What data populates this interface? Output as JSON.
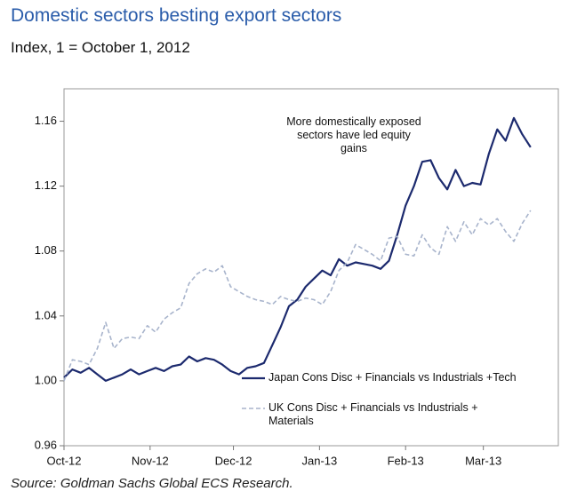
{
  "chart_data": {
    "type": "line",
    "title": "Domestic sectors besting export sectors",
    "subtitle": "Index, 1 = October 1, 2012",
    "source": "Source: Goldman Sachs Global ECS Research.",
    "annotation": "More domestically exposed sectors have led equity gains",
    "x": [
      0,
      3,
      6,
      9,
      12,
      15,
      18,
      21,
      24,
      27,
      30,
      33,
      36,
      39,
      42,
      45,
      48,
      51,
      54,
      57,
      60,
      63,
      66,
      69,
      72,
      75,
      78,
      81,
      84,
      87,
      90,
      93,
      96,
      99,
      102,
      105,
      108,
      111,
      114,
      117,
      120,
      123,
      126,
      129,
      132,
      135,
      138,
      141,
      144,
      147,
      150,
      153,
      156,
      159,
      162,
      165,
      168
    ],
    "series": [
      {
        "name": "Japan Cons Disc + Financials vs Industrials +Tech",
        "color": "#1c2a6e",
        "dashed": false,
        "values": [
          1.002,
          1.007,
          1.005,
          1.008,
          1.004,
          1.0,
          1.002,
          1.004,
          1.007,
          1.004,
          1.006,
          1.008,
          1.006,
          1.009,
          1.01,
          1.015,
          1.012,
          1.014,
          1.013,
          1.01,
          1.006,
          1.004,
          1.008,
          1.009,
          1.011,
          1.022,
          1.033,
          1.046,
          1.05,
          1.058,
          1.063,
          1.068,
          1.065,
          1.075,
          1.071,
          1.073,
          1.072,
          1.071,
          1.069,
          1.074,
          1.09,
          1.108,
          1.12,
          1.135,
          1.136,
          1.125,
          1.118,
          1.13,
          1.12,
          1.122,
          1.121,
          1.14,
          1.155,
          1.148,
          1.162,
          1.152,
          1.144
        ]
      },
      {
        "name": "UK Cons Disc + Financials vs Industrials + Materials",
        "color": "#a8b4cc",
        "dashed": true,
        "values": [
          1.0,
          1.013,
          1.012,
          1.01,
          1.02,
          1.036,
          1.02,
          1.026,
          1.027,
          1.026,
          1.034,
          1.03,
          1.038,
          1.042,
          1.045,
          1.06,
          1.066,
          1.069,
          1.067,
          1.071,
          1.058,
          1.055,
          1.052,
          1.05,
          1.049,
          1.047,
          1.052,
          1.05,
          1.049,
          1.051,
          1.05,
          1.047,
          1.055,
          1.068,
          1.073,
          1.084,
          1.081,
          1.078,
          1.074,
          1.088,
          1.089,
          1.078,
          1.077,
          1.09,
          1.082,
          1.078,
          1.095,
          1.086,
          1.098,
          1.09,
          1.1,
          1.096,
          1.1,
          1.092,
          1.086,
          1.097,
          1.105
        ]
      }
    ],
    "xlim": [
      0,
      178
    ],
    "xticks": [
      {
        "value": 0,
        "label": "Oct-12"
      },
      {
        "value": 31,
        "label": "Nov-12"
      },
      {
        "value": 61,
        "label": "Dec-12"
      },
      {
        "value": 92,
        "label": "Jan-13"
      },
      {
        "value": 123,
        "label": "Feb-13"
      },
      {
        "value": 151,
        "label": "Mar-13"
      }
    ],
    "ylim": [
      0.96,
      1.18
    ],
    "yticks": [
      {
        "value": 0.96,
        "label": "0.96"
      },
      {
        "value": 1.0,
        "label": "1.00"
      },
      {
        "value": 1.04,
        "label": "1.04"
      },
      {
        "value": 1.08,
        "label": "1.08"
      },
      {
        "value": 1.12,
        "label": "1.12"
      },
      {
        "value": 1.16,
        "label": "1.16"
      }
    ]
  }
}
